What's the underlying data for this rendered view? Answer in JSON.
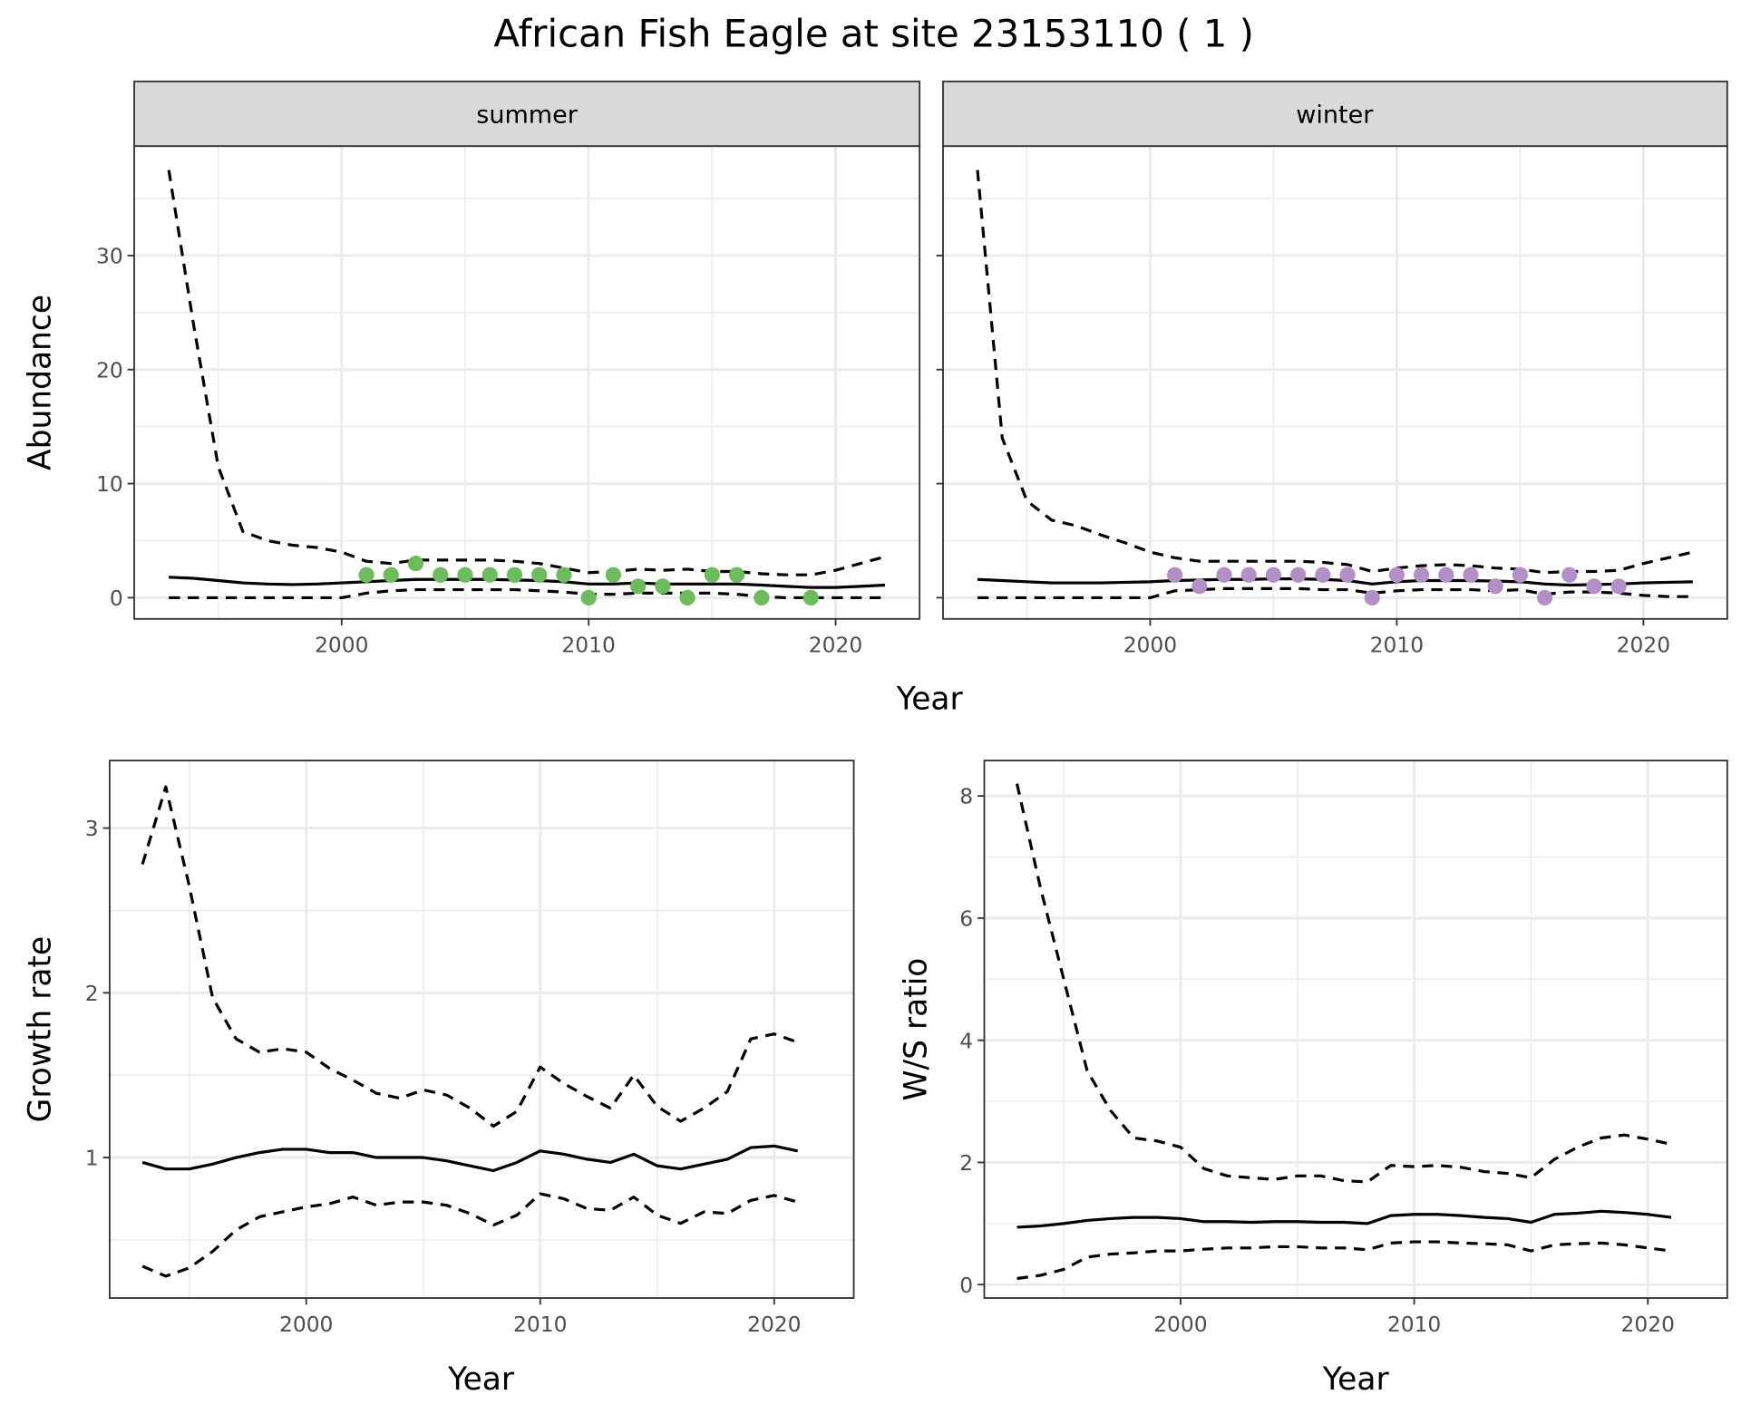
{
  "title": "African Fish Eagle at site 23153110 ( 1 )",
  "colors": {
    "summer": "#6abd5a",
    "winter": "#b38fc8",
    "line": "#000000",
    "grid": "#ebebeb"
  },
  "chart_data": [
    {
      "type": "line",
      "panel": "summer",
      "strip_label": "summer",
      "xlabel": "Year",
      "ylabel": "Abundance",
      "xlim": [
        1991.6,
        2023.4
      ],
      "ylim": [
        -1.86,
        39.6
      ],
      "xticks": [
        2000,
        2010,
        2020
      ],
      "yticks": [
        0,
        10,
        20,
        30
      ],
      "x": [
        1993,
        1994,
        1995,
        1996,
        1997,
        1998,
        1999,
        2000,
        2001,
        2002,
        2003,
        2004,
        2005,
        2006,
        2007,
        2008,
        2009,
        2010,
        2011,
        2012,
        2013,
        2014,
        2015,
        2016,
        2017,
        2018,
        2019,
        2020,
        2021,
        2022
      ],
      "series": [
        {
          "name": "upper",
          "style": "dashed",
          "values": [
            37.5,
            24,
            11.5,
            5.8,
            5,
            4.6,
            4.4,
            4,
            3.2,
            3,
            3.3,
            3.3,
            3.3,
            3.3,
            3.2,
            3,
            2.6,
            2.2,
            2.3,
            2.5,
            2.4,
            2.5,
            2.3,
            2.3,
            2.1,
            2,
            2,
            2.4,
            3,
            3.6
          ]
        },
        {
          "name": "mean",
          "style": "solid",
          "values": [
            1.8,
            1.7,
            1.5,
            1.3,
            1.2,
            1.15,
            1.2,
            1.3,
            1.4,
            1.5,
            1.6,
            1.6,
            1.6,
            1.6,
            1.55,
            1.5,
            1.4,
            1.2,
            1.2,
            1.3,
            1.2,
            1.2,
            1.2,
            1.2,
            1.1,
            1,
            0.9,
            0.9,
            1,
            1.1
          ]
        },
        {
          "name": "lower",
          "style": "dashed",
          "values": [
            0,
            0,
            0,
            0,
            0,
            0,
            0,
            0,
            0.4,
            0.6,
            0.7,
            0.7,
            0.7,
            0.7,
            0.7,
            0.6,
            0.5,
            0.3,
            0.3,
            0.4,
            0.4,
            0.4,
            0.4,
            0.3,
            0.1,
            0,
            0,
            0,
            0,
            0
          ]
        }
      ],
      "points": {
        "x": [
          2001,
          2002,
          2003,
          2004,
          2005,
          2006,
          2007,
          2008,
          2009,
          2010,
          2011,
          2012,
          2013,
          2014,
          2015,
          2016,
          2017,
          2019
        ],
        "y": [
          2,
          2,
          3,
          2,
          2,
          2,
          2,
          2,
          2,
          0,
          2,
          1,
          1,
          0,
          2,
          2,
          0,
          0
        ]
      }
    },
    {
      "type": "line",
      "panel": "winter",
      "strip_label": "winter",
      "xlabel": "Year",
      "ylabel": "Abundance",
      "xlim": [
        1991.6,
        2023.4
      ],
      "ylim": [
        -1.86,
        39.6
      ],
      "xticks": [
        2000,
        2010,
        2020
      ],
      "yticks": [
        0,
        10,
        20,
        30
      ],
      "x": [
        1993,
        1994,
        1995,
        1996,
        1997,
        1998,
        1999,
        2000,
        2001,
        2002,
        2003,
        2004,
        2005,
        2006,
        2007,
        2008,
        2009,
        2010,
        2011,
        2012,
        2013,
        2014,
        2015,
        2016,
        2017,
        2018,
        2019,
        2020,
        2021,
        2022
      ],
      "series": [
        {
          "name": "upper",
          "style": "dashed",
          "values": [
            37.5,
            14,
            8.5,
            6.8,
            6.3,
            5.5,
            4.8,
            4,
            3.5,
            3.2,
            3.2,
            3.2,
            3.2,
            3.2,
            3.1,
            2.9,
            2.3,
            2.6,
            2.8,
            2.9,
            2.8,
            2.6,
            2.5,
            2.2,
            2.3,
            2.3,
            2.4,
            3,
            3.5,
            4
          ]
        },
        {
          "name": "mean",
          "style": "solid",
          "values": [
            1.6,
            1.5,
            1.4,
            1.3,
            1.3,
            1.3,
            1.35,
            1.4,
            1.5,
            1.55,
            1.6,
            1.6,
            1.65,
            1.65,
            1.6,
            1.5,
            1.2,
            1.4,
            1.5,
            1.5,
            1.5,
            1.45,
            1.4,
            1.2,
            1.1,
            1.15,
            1.2,
            1.3,
            1.35,
            1.4
          ]
        },
        {
          "name": "lower",
          "style": "dashed",
          "values": [
            0,
            0,
            0,
            0,
            0,
            0,
            0,
            0,
            0.6,
            0.7,
            0.8,
            0.8,
            0.8,
            0.8,
            0.7,
            0.7,
            0.4,
            0.6,
            0.7,
            0.7,
            0.7,
            0.6,
            0.7,
            0.3,
            0.5,
            0.5,
            0.4,
            0.2,
            0.1,
            0.1
          ]
        }
      ],
      "points": {
        "x": [
          2001,
          2002,
          2003,
          2004,
          2005,
          2006,
          2007,
          2008,
          2009,
          2010,
          2011,
          2012,
          2013,
          2014,
          2015,
          2016,
          2017,
          2018,
          2019
        ],
        "y": [
          2,
          1,
          2,
          2,
          2,
          2,
          2,
          2,
          0,
          2,
          2,
          2,
          2,
          1,
          2,
          0,
          2,
          1,
          1
        ]
      }
    },
    {
      "type": "line",
      "panel": "growth",
      "xlabel": "Year",
      "ylabel": "Growth rate",
      "xlim": [
        1991.6,
        2023.4
      ],
      "ylim": [
        0.147,
        3.41
      ],
      "xticks": [
        2000,
        2010,
        2020
      ],
      "yticks": [
        1,
        2,
        3
      ],
      "x": [
        1993,
        1994,
        1995,
        1996,
        1997,
        1998,
        1999,
        2000,
        2001,
        2002,
        2003,
        2004,
        2005,
        2006,
        2007,
        2008,
        2009,
        2010,
        2011,
        2012,
        2013,
        2014,
        2015,
        2016,
        2017,
        2018,
        2019,
        2020,
        2021
      ],
      "series": [
        {
          "name": "upper",
          "style": "dashed",
          "values": [
            2.78,
            3.25,
            2.65,
            1.97,
            1.72,
            1.64,
            1.66,
            1.64,
            1.54,
            1.47,
            1.39,
            1.36,
            1.41,
            1.38,
            1.3,
            1.19,
            1.28,
            1.55,
            1.45,
            1.37,
            1.3,
            1.5,
            1.31,
            1.22,
            1.3,
            1.4,
            1.72,
            1.75,
            1.7
          ]
        },
        {
          "name": "mean",
          "style": "solid",
          "values": [
            0.97,
            0.93,
            0.93,
            0.96,
            1,
            1.03,
            1.05,
            1.05,
            1.03,
            1.03,
            1,
            1,
            1,
            0.98,
            0.95,
            0.92,
            0.97,
            1.04,
            1.02,
            0.99,
            0.97,
            1.02,
            0.95,
            0.93,
            0.96,
            0.99,
            1.06,
            1.07,
            1.04
          ]
        },
        {
          "name": "lower",
          "style": "dashed",
          "values": [
            0.34,
            0.28,
            0.33,
            0.43,
            0.56,
            0.64,
            0.67,
            0.7,
            0.72,
            0.76,
            0.71,
            0.73,
            0.73,
            0.71,
            0.66,
            0.59,
            0.65,
            0.78,
            0.75,
            0.69,
            0.68,
            0.76,
            0.65,
            0.6,
            0.67,
            0.66,
            0.74,
            0.77,
            0.73
          ]
        }
      ]
    },
    {
      "type": "line",
      "panel": "ratio",
      "xlabel": "Year",
      "ylabel": "W/S ratio",
      "xlim": [
        1991.6,
        2023.4
      ],
      "ylim": [
        -0.22,
        8.58
      ],
      "xticks": [
        2000,
        2010,
        2020
      ],
      "yticks": [
        0,
        2,
        4,
        6,
        8
      ],
      "x": [
        1993,
        1994,
        1995,
        1996,
        1997,
        1998,
        1999,
        2000,
        2001,
        2002,
        2003,
        2004,
        2005,
        2006,
        2007,
        2008,
        2009,
        2010,
        2011,
        2012,
        2013,
        2014,
        2015,
        2016,
        2017,
        2018,
        2019,
        2020,
        2021
      ],
      "series": [
        {
          "name": "upper",
          "style": "dashed",
          "values": [
            8.2,
            6.5,
            5,
            3.5,
            2.85,
            2.4,
            2.35,
            2.25,
            1.9,
            1.78,
            1.75,
            1.72,
            1.78,
            1.78,
            1.7,
            1.68,
            1.95,
            1.93,
            1.95,
            1.92,
            1.85,
            1.82,
            1.75,
            2.05,
            2.25,
            2.4,
            2.45,
            2.38,
            2.3
          ]
        },
        {
          "name": "mean",
          "style": "solid",
          "values": [
            0.94,
            0.96,
            1,
            1.05,
            1.08,
            1.1,
            1.1,
            1.08,
            1.03,
            1.03,
            1.02,
            1.03,
            1.03,
            1.02,
            1.02,
            1,
            1.13,
            1.15,
            1.15,
            1.13,
            1.1,
            1.08,
            1.02,
            1.15,
            1.17,
            1.2,
            1.18,
            1.15,
            1.1
          ]
        },
        {
          "name": "lower",
          "style": "dashed",
          "values": [
            0.1,
            0.15,
            0.25,
            0.45,
            0.5,
            0.52,
            0.55,
            0.55,
            0.58,
            0.6,
            0.6,
            0.62,
            0.62,
            0.6,
            0.6,
            0.57,
            0.68,
            0.7,
            0.7,
            0.68,
            0.67,
            0.65,
            0.55,
            0.65,
            0.67,
            0.68,
            0.65,
            0.6,
            0.55
          ]
        }
      ]
    }
  ]
}
